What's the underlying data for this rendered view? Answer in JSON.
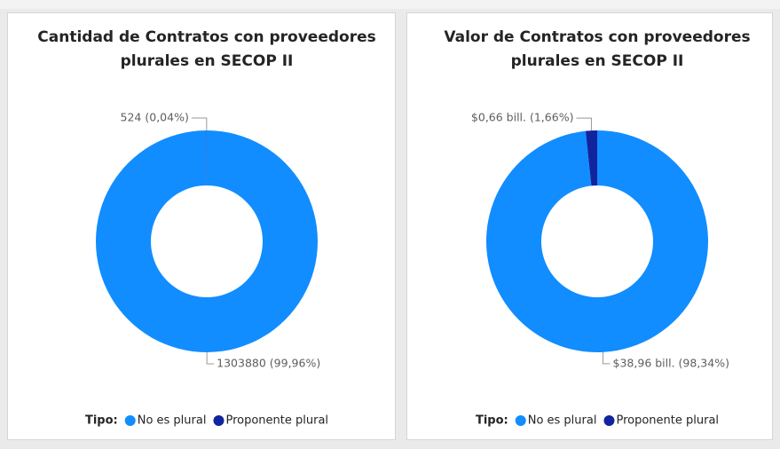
{
  "chart_data": [
    {
      "type": "donut",
      "title": [
        "Cantidad de Contratos con proveedores",
        "plurales en SECOP II"
      ],
      "legend_title": "Tipo:",
      "categories": [
        "No es plural",
        "Proponente plural"
      ],
      "values": [
        1303880,
        524
      ],
      "value_labels": [
        "1303880 (99,96%)",
        "524 (0,04%)"
      ],
      "colors": [
        "#118dff",
        "#12239e"
      ]
    },
    {
      "type": "donut",
      "title": [
        "Valor de Contratos con proveedores",
        "plurales en SECOP II"
      ],
      "legend_title": "Tipo:",
      "categories": [
        "No es plural",
        "Proponente plural"
      ],
      "values": [
        38.96,
        0.66
      ],
      "value_labels": [
        "$38,96 bill. (98,34%)",
        "$0,66 bill. (1,66%)"
      ],
      "colors": [
        "#118dff",
        "#12239e"
      ]
    }
  ]
}
